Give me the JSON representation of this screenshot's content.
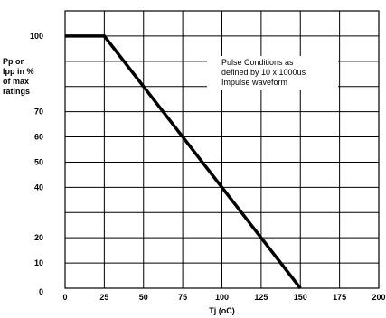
{
  "chart_data": {
    "type": "line",
    "title": "",
    "xlabel": "Tj (oC)",
    "ylabel_lines": [
      "Pp or",
      "Ipp in %",
      "of max",
      "ratings"
    ],
    "xlim": [
      0,
      200
    ],
    "ylim": [
      0,
      110
    ],
    "x_ticks": [
      0,
      25,
      50,
      75,
      100,
      125,
      150,
      175,
      200
    ],
    "y_ticks": [
      0,
      10,
      20,
      30,
      40,
      50,
      60,
      70,
      80,
      90,
      100,
      110
    ],
    "y_tick_labels_shown": [
      "0",
      "10",
      "20",
      "",
      "40",
      "50",
      "60",
      "70",
      "",
      "",
      "100",
      ""
    ],
    "grid": true,
    "series": [
      {
        "x": [
          0,
          25,
          150
        ],
        "y": [
          100,
          100,
          0
        ],
        "color": "#000000"
      }
    ],
    "annotation_lines": [
      "Pulse Conditions as",
      "defined by 10 x 1000us",
      "Impulse waveform"
    ]
  }
}
